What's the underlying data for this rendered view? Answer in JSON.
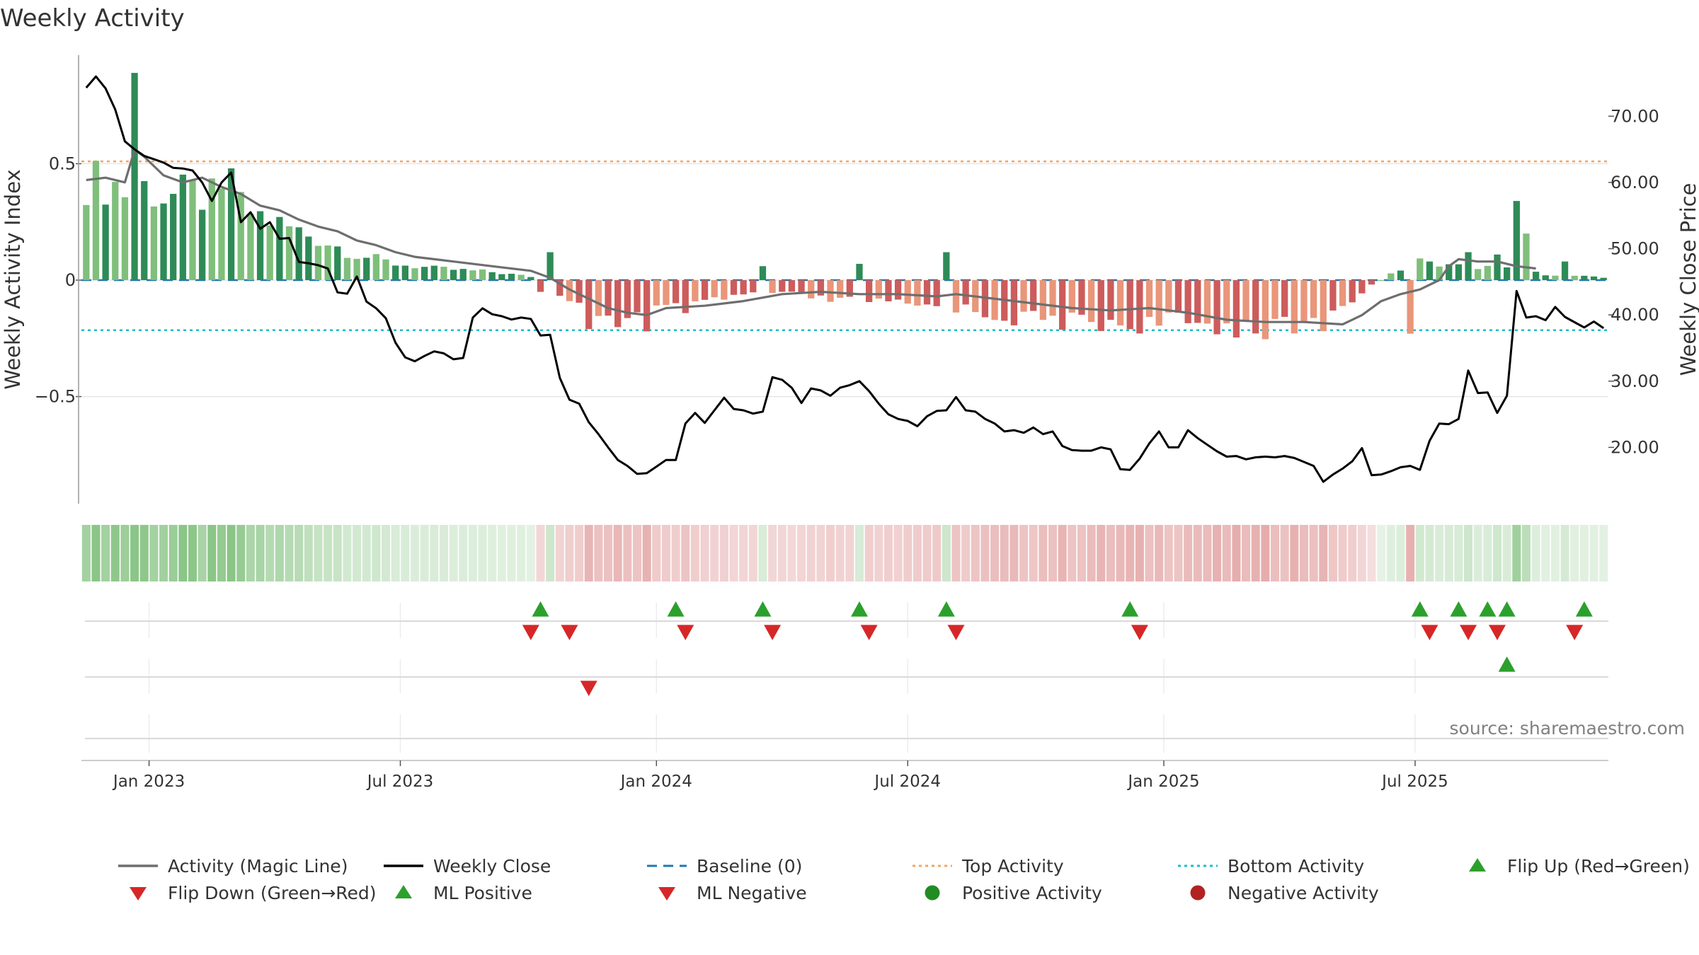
{
  "chart_data": {
    "type": "bar",
    "title": "Weekly Activity",
    "ylabel_left": "Weekly Activity Index",
    "ylabel_right": "Weekly Close Price",
    "source": "source: sharemaestro.com",
    "x_ticks": [
      "Jan 2023",
      "Jul 2023",
      "Jan 2024",
      "Jul 2024",
      "Jan 2025",
      "Jul 2025"
    ],
    "x_tick_weeks": [
      7,
      33,
      59.5,
      85.5,
      112,
      138
    ],
    "y_ticks_left": [
      {
        "value": 0.5,
        "label": "0.5"
      },
      {
        "value": 0,
        "label": "0"
      },
      {
        "value": -0.5,
        "label": "−0.5"
      }
    ],
    "y_ticks_right": [
      {
        "value": 70,
        "label": "70.00"
      },
      {
        "value": 60,
        "label": "60.00"
      },
      {
        "value": 50,
        "label": "50.00"
      },
      {
        "value": 40,
        "label": "40.00"
      },
      {
        "value": 30,
        "label": "30.00"
      },
      {
        "value": 20,
        "label": "20.00"
      }
    ],
    "ylim_left": [
      -0.96,
      0.96
    ],
    "ylim_right": [
      11.5,
      79
    ],
    "top_activity": 0.51,
    "bottom_activity": -0.215,
    "weeks": 158,
    "activity_anchors": [
      [
        0,
        0.43
      ],
      [
        3,
        0.41
      ],
      [
        4,
        0.38
      ],
      [
        5,
        0.55
      ],
      [
        6,
        0.4
      ],
      [
        8,
        0.36
      ],
      [
        11,
        0.37
      ],
      [
        15,
        0.33
      ],
      [
        20,
        0.24
      ],
      [
        24,
        0.18
      ],
      [
        28,
        0.11
      ],
      [
        32,
        0.07
      ],
      [
        36,
        0.05
      ],
      [
        42,
        0.035
      ],
      [
        46,
        0.015
      ],
      [
        47,
        -0.05
      ],
      [
        50,
        -0.1
      ],
      [
        52,
        -0.14
      ],
      [
        55,
        -0.17
      ],
      [
        57,
        -0.16
      ],
      [
        59,
        -0.13
      ],
      [
        63,
        -0.12
      ],
      [
        66,
        -0.08
      ],
      [
        70,
        -0.05
      ],
      [
        74,
        -0.07
      ],
      [
        78,
        -0.09
      ],
      [
        82,
        -0.1
      ],
      [
        86,
        -0.11
      ],
      [
        90,
        -0.12
      ],
      [
        94,
        -0.15
      ],
      [
        98,
        -0.17
      ],
      [
        104,
        -0.18
      ],
      [
        108,
        -0.19
      ],
      [
        112,
        -0.18
      ],
      [
        116,
        -0.19
      ],
      [
        120,
        -0.2
      ],
      [
        124,
        -0.21
      ],
      [
        126,
        -0.2
      ],
      [
        128,
        -0.18
      ],
      [
        132,
        -0.05
      ],
      [
        136,
        0.05
      ],
      [
        138,
        0.08
      ],
      [
        140,
        0.06
      ],
      [
        144,
        0.06
      ],
      [
        148,
        0.04
      ],
      [
        150,
        0.03
      ],
      [
        157,
        0.01
      ]
    ],
    "magic_line": [
      [
        0,
        0.43
      ],
      [
        2,
        0.44
      ],
      [
        4,
        0.42
      ],
      [
        5,
        0.56
      ],
      [
        6,
        0.53
      ],
      [
        8,
        0.45
      ],
      [
        10,
        0.42
      ],
      [
        12,
        0.44
      ],
      [
        14,
        0.4
      ],
      [
        16,
        0.37
      ],
      [
        18,
        0.32
      ],
      [
        20,
        0.3
      ],
      [
        22,
        0.26
      ],
      [
        24,
        0.23
      ],
      [
        26,
        0.21
      ],
      [
        28,
        0.17
      ],
      [
        30,
        0.15
      ],
      [
        32,
        0.12
      ],
      [
        34,
        0.1
      ],
      [
        36,
        0.09
      ],
      [
        38,
        0.08
      ],
      [
        42,
        0.06
      ],
      [
        46,
        0.04
      ],
      [
        48,
        0.01
      ],
      [
        50,
        -0.04
      ],
      [
        52,
        -0.08
      ],
      [
        54,
        -0.12
      ],
      [
        56,
        -0.14
      ],
      [
        58,
        -0.15
      ],
      [
        60,
        -0.12
      ],
      [
        64,
        -0.11
      ],
      [
        68,
        -0.09
      ],
      [
        72,
        -0.06
      ],
      [
        76,
        -0.05
      ],
      [
        80,
        -0.06
      ],
      [
        84,
        -0.06
      ],
      [
        88,
        -0.07
      ],
      [
        90,
        -0.06
      ],
      [
        94,
        -0.08
      ],
      [
        98,
        -0.1
      ],
      [
        102,
        -0.12
      ],
      [
        106,
        -0.13
      ],
      [
        110,
        -0.12
      ],
      [
        114,
        -0.14
      ],
      [
        118,
        -0.17
      ],
      [
        122,
        -0.18
      ],
      [
        126,
        -0.18
      ],
      [
        130,
        -0.19
      ],
      [
        132,
        -0.15
      ],
      [
        134,
        -0.09
      ],
      [
        136,
        -0.06
      ],
      [
        138,
        -0.04
      ],
      [
        140,
        0.0
      ],
      [
        141,
        0.06
      ],
      [
        142,
        0.09
      ],
      [
        144,
        0.08
      ],
      [
        146,
        0.08
      ],
      [
        148,
        0.06
      ],
      [
        150,
        0.05
      ]
    ],
    "weekly_close": [
      [
        0,
        74.3
      ],
      [
        1,
        76.0
      ],
      [
        2,
        74.2
      ],
      [
        3,
        71.0
      ],
      [
        4,
        66.2
      ],
      [
        5,
        65.0
      ],
      [
        6,
        64.0
      ],
      [
        7,
        63.5
      ],
      [
        8,
        63.0
      ],
      [
        9,
        62.2
      ],
      [
        10,
        62.1
      ],
      [
        11,
        61.8
      ],
      [
        12,
        60.0
      ],
      [
        13,
        57.2
      ],
      [
        14,
        60.0
      ],
      [
        15,
        61.5
      ],
      [
        16,
        54.0
      ],
      [
        17,
        55.5
      ],
      [
        18,
        53.0
      ],
      [
        19,
        54.0
      ],
      [
        20,
        51.5
      ],
      [
        21,
        51.6
      ],
      [
        22,
        48.0
      ],
      [
        23,
        47.8
      ],
      [
        24,
        47.5
      ],
      [
        25,
        47.0
      ],
      [
        26,
        43.4
      ],
      [
        27,
        43.2
      ],
      [
        28,
        45.8
      ],
      [
        29,
        42.0
      ],
      [
        30,
        41.0
      ],
      [
        31,
        39.5
      ],
      [
        32,
        35.8
      ],
      [
        33,
        33.6
      ],
      [
        34,
        33.0
      ],
      [
        35,
        33.8
      ],
      [
        36,
        34.5
      ],
      [
        37,
        34.2
      ],
      [
        38,
        33.3
      ],
      [
        39,
        33.5
      ],
      [
        40,
        39.6
      ],
      [
        41,
        41.0
      ],
      [
        42,
        40.1
      ],
      [
        43,
        39.8
      ],
      [
        44,
        39.3
      ],
      [
        45,
        39.6
      ],
      [
        46,
        39.4
      ],
      [
        47,
        36.9
      ],
      [
        48,
        37.0
      ],
      [
        49,
        30.5
      ],
      [
        50,
        27.2
      ],
      [
        51,
        26.6
      ],
      [
        52,
        23.8
      ],
      [
        53,
        22.0
      ],
      [
        54,
        20.0
      ],
      [
        55,
        18.1
      ],
      [
        56,
        17.2
      ],
      [
        57,
        16.0
      ],
      [
        58,
        16.1
      ],
      [
        59,
        17.1
      ],
      [
        60,
        18.1
      ],
      [
        61,
        18.1
      ],
      [
        62,
        23.6
      ],
      [
        63,
        25.2
      ],
      [
        64,
        23.7
      ],
      [
        65,
        25.6
      ],
      [
        66,
        27.5
      ],
      [
        67,
        25.8
      ],
      [
        68,
        25.6
      ],
      [
        69,
        25.1
      ],
      [
        70,
        25.4
      ],
      [
        71,
        30.6
      ],
      [
        72,
        30.2
      ],
      [
        73,
        29.0
      ],
      [
        74,
        26.7
      ],
      [
        75,
        28.9
      ],
      [
        76,
        28.6
      ],
      [
        77,
        27.8
      ],
      [
        78,
        29.0
      ],
      [
        79,
        29.4
      ],
      [
        80,
        30.0
      ],
      [
        81,
        28.5
      ],
      [
        82,
        26.6
      ],
      [
        83,
        25.0
      ],
      [
        84,
        24.3
      ],
      [
        85,
        24.0
      ],
      [
        86,
        23.2
      ],
      [
        87,
        24.7
      ],
      [
        88,
        25.5
      ],
      [
        89,
        25.6
      ],
      [
        90,
        27.6
      ],
      [
        91,
        25.6
      ],
      [
        92,
        25.4
      ],
      [
        93,
        24.3
      ],
      [
        94,
        23.6
      ],
      [
        95,
        22.4
      ],
      [
        96,
        22.6
      ],
      [
        97,
        22.2
      ],
      [
        98,
        23.0
      ],
      [
        99,
        22.0
      ],
      [
        100,
        22.4
      ],
      [
        101,
        20.2
      ],
      [
        102,
        19.6
      ],
      [
        103,
        19.5
      ],
      [
        104,
        19.5
      ],
      [
        105,
        20.0
      ],
      [
        106,
        19.7
      ],
      [
        107,
        16.7
      ],
      [
        108,
        16.6
      ],
      [
        109,
        18.3
      ],
      [
        110,
        20.6
      ],
      [
        111,
        22.4
      ],
      [
        112,
        20.0
      ],
      [
        113,
        20.0
      ],
      [
        114,
        22.6
      ],
      [
        115,
        21.4
      ],
      [
        116,
        20.4
      ],
      [
        117,
        19.4
      ],
      [
        118,
        18.6
      ],
      [
        119,
        18.7
      ],
      [
        120,
        18.2
      ],
      [
        121,
        18.5
      ],
      [
        122,
        18.6
      ],
      [
        123,
        18.5
      ],
      [
        124,
        18.7
      ],
      [
        125,
        18.4
      ],
      [
        126,
        17.8
      ],
      [
        127,
        17.2
      ],
      [
        128,
        14.8
      ],
      [
        129,
        15.9
      ],
      [
        130,
        16.8
      ],
      [
        131,
        17.9
      ],
      [
        132,
        19.9
      ],
      [
        133,
        15.8
      ],
      [
        134,
        15.9
      ],
      [
        135,
        16.4
      ],
      [
        136,
        17.0
      ],
      [
        137,
        17.2
      ],
      [
        138,
        16.6
      ],
      [
        139,
        21.0
      ],
      [
        140,
        23.6
      ],
      [
        141,
        23.5
      ],
      [
        142,
        24.3
      ],
      [
        143,
        31.6
      ],
      [
        144,
        28.2
      ],
      [
        145,
        28.3
      ],
      [
        146,
        25.2
      ],
      [
        147,
        27.8
      ],
      [
        148,
        43.6
      ],
      [
        149,
        39.6
      ],
      [
        150,
        39.8
      ],
      [
        151,
        39.2
      ],
      [
        152,
        41.2
      ],
      [
        153,
        39.7
      ],
      [
        154,
        38.9
      ],
      [
        155,
        38.1
      ],
      [
        156,
        39.0
      ],
      [
        157,
        38.0
      ]
    ],
    "spikes": [
      [
        5,
        0.89,
        "dark"
      ],
      [
        15,
        0.48,
        "dark"
      ],
      [
        48,
        0.12,
        "dark"
      ],
      [
        70,
        0.06,
        "dark"
      ],
      [
        80,
        0.07,
        "dark"
      ],
      [
        89,
        0.12,
        "dark"
      ],
      [
        139,
        0.08,
        "dark"
      ],
      [
        143,
        0.12,
        "dark"
      ],
      [
        146,
        0.11,
        "dark"
      ],
      [
        148,
        0.34,
        "dark"
      ],
      [
        149,
        0.2,
        "light"
      ],
      [
        153,
        0.08,
        "dark"
      ],
      [
        52,
        -0.21,
        "dark"
      ],
      [
        58,
        -0.22,
        "dark"
      ],
      [
        137,
        -0.23,
        "light"
      ]
    ],
    "flip_up_weeks": [
      47.5,
      61.5,
      70.5,
      80.5,
      89.5,
      108.5,
      138.5,
      142.5,
      145.5,
      147.5,
      155.5
    ],
    "flip_down_weeks": [
      46.5,
      50.5,
      62.5,
      71.5,
      81.5,
      90.5,
      109.5,
      139.5,
      143.5,
      146.5,
      154.5
    ],
    "ml_positive_weeks": [
      147.5
    ],
    "ml_negative_weeks": [
      52.5
    ],
    "colors": {
      "pos_dark": "#2e8b57",
      "pos_light": "#7fbf7b",
      "neg_dark": "#cd5c5c",
      "neg_light": "#e9967a",
      "magic_line": "#6e6e6e",
      "weekly_close": "#000000",
      "baseline": "#1f77b4",
      "top_activity": "#f4a460",
      "bottom_activity": "#17becf",
      "flip_up": "#2ca02c",
      "flip_down": "#d62728",
      "positive_dot": "#228b22",
      "negative_dot": "#b22222",
      "axis_text": "#333333",
      "grid": "#e6e6e6",
      "source_text": "#808080"
    },
    "legend": [
      {
        "label": "Activity (Magic Line)",
        "kind": "line",
        "color": "#6e6e6e"
      },
      {
        "label": "Weekly Close",
        "kind": "line",
        "color": "#000000"
      },
      {
        "label": "Baseline (0)",
        "kind": "dashed",
        "color": "#1f77b4"
      },
      {
        "label": "Top Activity",
        "kind": "dotted",
        "color": "#f4a460"
      },
      {
        "label": "Bottom Activity",
        "kind": "dotted",
        "color": "#17becf"
      },
      {
        "label": "Flip Up (Red→Green)",
        "kind": "tri-up",
        "color": "#2ca02c"
      },
      {
        "label": "Flip Down (Green→Red)",
        "kind": "tri-down",
        "color": "#d62728"
      },
      {
        "label": "ML Positive",
        "kind": "tri-up",
        "color": "#2ca02c"
      },
      {
        "label": "ML Negative",
        "kind": "tri-down",
        "color": "#d62728"
      },
      {
        "label": "Positive Activity",
        "kind": "dot",
        "color": "#228b22"
      },
      {
        "label": "Negative Activity",
        "kind": "dot",
        "color": "#b22222"
      }
    ]
  }
}
